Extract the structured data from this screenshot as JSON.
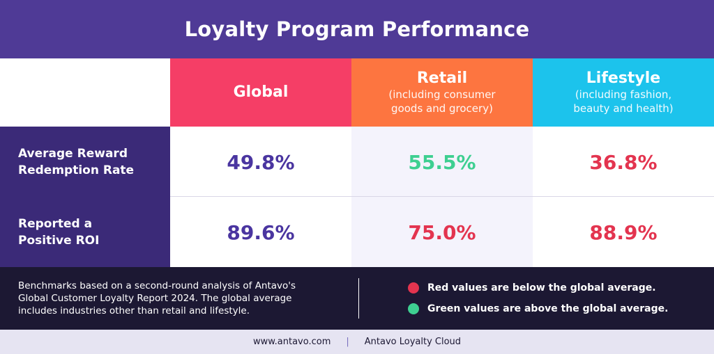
{
  "title": "Loyalty Program Performance",
  "colors": {
    "title_bg": "#4f3a96",
    "global": "#f53e66",
    "retail": "#fd7540",
    "lifestyle": "#1cc3ec",
    "row_label_bg": "#3b2a78",
    "value_neutral": "#4a35a0",
    "value_red": "#e3344f",
    "value_green": "#3ecf91",
    "footer_bg": "#1c1833"
  },
  "columns": [
    {
      "name": "Global",
      "sub": ""
    },
    {
      "name": "Retail",
      "sub_lines": [
        "(including consumer",
        "goods and grocery)"
      ]
    },
    {
      "name": "Lifestyle",
      "sub_lines": [
        "(including fashion,",
        "beauty and health)"
      ]
    }
  ],
  "rows": [
    {
      "label_lines": [
        "Average Reward",
        "Redemption Rate"
      ],
      "values": [
        {
          "text": "49.8%",
          "status": "neutral"
        },
        {
          "text": "55.5%",
          "status": "green"
        },
        {
          "text": "36.8%",
          "status": "red"
        }
      ]
    },
    {
      "label_lines": [
        "Reported a",
        "Positive ROI"
      ],
      "values": [
        {
          "text": "89.6%",
          "status": "neutral"
        },
        {
          "text": "75.0%",
          "status": "red"
        },
        {
          "text": "88.9%",
          "status": "red"
        }
      ]
    }
  ],
  "footnote_lines": [
    "Benchmarks based on a second-round analysis of Antavo's",
    "Global Customer Loyalty Report 2024. The global average",
    "includes industries other than retail and lifestyle."
  ],
  "legend": {
    "red": "Red values are below the global average.",
    "green": "Green values are above the global average."
  },
  "bottom": {
    "website": "www.antavo.com",
    "separator": "|",
    "brand": "Antavo Loyalty Cloud"
  }
}
